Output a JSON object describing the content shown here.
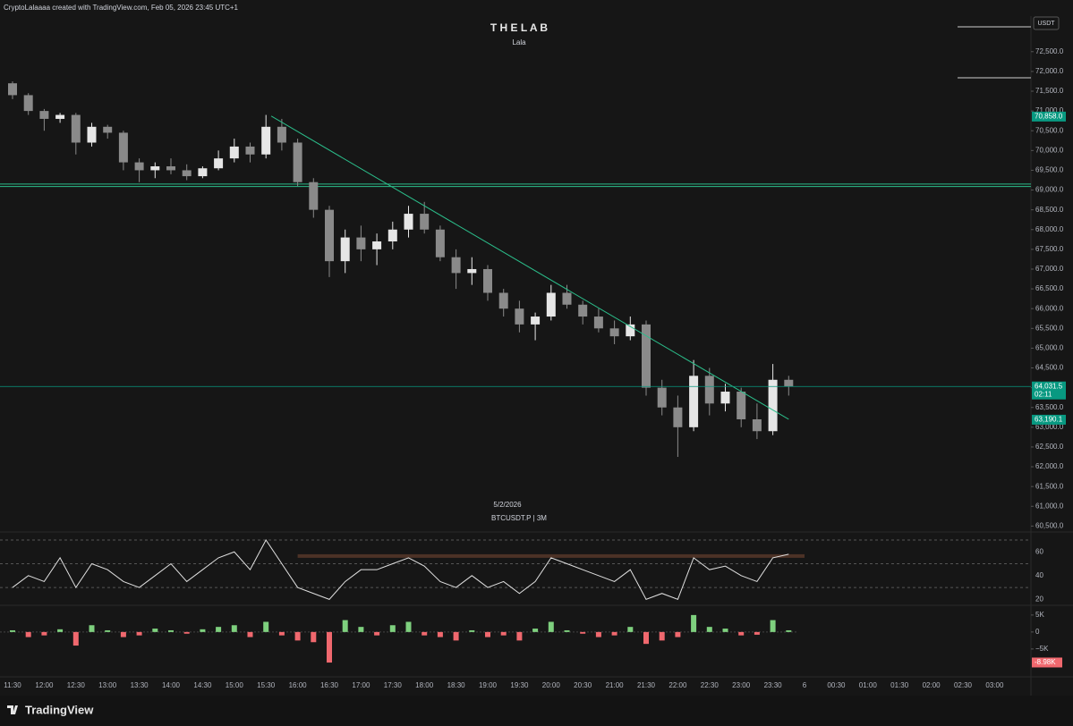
{
  "header": "CryptoLalaaaa created with TradingView.com, Feb 05, 2026 23:45 UTC+1",
  "footer": "TradingView",
  "chart_data": [
    {
      "type": "candlestick",
      "title": "T H E   L A B",
      "subtitle": "Lala",
      "date_label": "5/2/2026",
      "symbol": "BTCUSDT.P | 3M",
      "currency": "USDT",
      "x": [
        "11:30",
        "11:45",
        "12:00",
        "12:15",
        "12:30",
        "12:45",
        "13:00",
        "13:15",
        "13:30",
        "13:45",
        "14:00",
        "14:15",
        "14:30",
        "14:45",
        "15:00",
        "15:15",
        "15:30",
        "15:45",
        "16:00",
        "16:15",
        "16:30",
        "16:45",
        "17:00",
        "17:15",
        "17:30",
        "17:45",
        "18:00",
        "18:15",
        "18:30",
        "18:45",
        "19:00",
        "19:15",
        "19:30",
        "19:45",
        "20:00",
        "20:15",
        "20:30",
        "20:45",
        "21:00",
        "21:15",
        "21:30",
        "21:45",
        "22:00",
        "22:15",
        "22:30",
        "22:45",
        "23:00",
        "23:15",
        "23:30",
        "23:45"
      ],
      "open": [
        71700,
        71400,
        71000,
        70800,
        70900,
        70200,
        70600,
        70450,
        69700,
        69500,
        69600,
        69500,
        69350,
        69550,
        69800,
        70100,
        69900,
        70600,
        70200,
        69200,
        68500,
        67200,
        67800,
        67500,
        67700,
        68000,
        68400,
        68000,
        67300,
        66900,
        67000,
        66400,
        66000,
        65600,
        65800,
        66400,
        66100,
        65800,
        65500,
        65300,
        65600,
        64000,
        63500,
        63000,
        64300,
        63600,
        63900,
        63200,
        62900,
        64200
      ],
      "high": [
        71750,
        71450,
        71050,
        70950,
        70950,
        70700,
        70650,
        70500,
        69800,
        69700,
        69800,
        69650,
        69600,
        70000,
        70300,
        70200,
        70900,
        70800,
        70300,
        69300,
        68600,
        68000,
        68100,
        67900,
        68200,
        68600,
        68700,
        68100,
        67500,
        67300,
        67100,
        66500,
        66200,
        65900,
        66600,
        66600,
        66200,
        66000,
        65700,
        65800,
        65700,
        64200,
        63800,
        64700,
        64500,
        64100,
        64000,
        63600,
        64600,
        64300
      ],
      "low": [
        71300,
        70900,
        70500,
        70700,
        69900,
        70100,
        70300,
        69500,
        69200,
        69300,
        69400,
        69250,
        69300,
        69500,
        69700,
        69700,
        69800,
        70000,
        69100,
        68300,
        66800,
        66900,
        67200,
        67100,
        67500,
        67800,
        67900,
        67200,
        66500,
        66600,
        66200,
        65800,
        65400,
        65200,
        65700,
        66000,
        65600,
        65400,
        65100,
        65200,
        63800,
        63300,
        62250,
        62900,
        63300,
        63400,
        63000,
        62700,
        62800,
        63800
      ],
      "close": [
        71400,
        71000,
        70800,
        70900,
        70200,
        70600,
        70450,
        69700,
        69500,
        69600,
        69500,
        69350,
        69550,
        69800,
        70100,
        69900,
        70600,
        70200,
        69200,
        68500,
        67200,
        67800,
        67500,
        67700,
        68000,
        68400,
        68000,
        67300,
        66900,
        67000,
        66400,
        66000,
        65600,
        65800,
        66400,
        66100,
        65800,
        65500,
        65300,
        65600,
        64000,
        63500,
        63000,
        64300,
        63600,
        63900,
        63200,
        62900,
        64200,
        64031.5
      ],
      "colors": {
        "up": "#e6e6e6",
        "down": "#8a8a8a"
      },
      "ylim": [
        60350,
        73400
      ],
      "yticks": [
        {
          "value": 60500,
          "label": "60,500.0"
        },
        {
          "value": 61000,
          "label": "61,000.0"
        },
        {
          "value": 61500,
          "label": "61,500.0"
        },
        {
          "value": 62000,
          "label": "62,000.0"
        },
        {
          "value": 62500,
          "label": "62,500.0"
        },
        {
          "value": 63000,
          "label": "63,000.0"
        },
        {
          "value": 63500,
          "label": "63,500.0"
        },
        {
          "value": 64000,
          "label": "64,000.0"
        },
        {
          "value": 64500,
          "label": "64,500.0"
        },
        {
          "value": 65000,
          "label": "65,000.0"
        },
        {
          "value": 65500,
          "label": "65,500.0"
        },
        {
          "value": 66000,
          "label": "66,000.0"
        },
        {
          "value": 66500,
          "label": "66,500.0"
        },
        {
          "value": 67000,
          "label": "67,000.0"
        },
        {
          "value": 67500,
          "label": "67,500.0"
        },
        {
          "value": 68000,
          "label": "68,000.0"
        },
        {
          "value": 68500,
          "label": "68,500.0"
        },
        {
          "value": 69000,
          "label": "69,000.0"
        },
        {
          "value": 69500,
          "label": "69,500.0"
        },
        {
          "value": 70000,
          "label": "70,000.0"
        },
        {
          "value": 70500,
          "label": "70,500.0"
        },
        {
          "value": 71000,
          "label": "71,000.0"
        },
        {
          "value": 71500,
          "label": "71,500.0"
        },
        {
          "value": 72000,
          "label": "72,000.0"
        },
        {
          "value": 72500,
          "label": "72,500.0"
        }
      ],
      "xticks": [
        "11:30",
        "12:00",
        "12:30",
        "13:00",
        "13:30",
        "14:00",
        "14:30",
        "15:00",
        "15:30",
        "16:00",
        "16:30",
        "17:00",
        "17:30",
        "18:00",
        "18:30",
        "19:00",
        "19:30",
        "20:00",
        "20:30",
        "21:00",
        "21:30",
        "22:00",
        "22:30",
        "23:00",
        "23:30",
        "6",
        "00:30",
        "01:00",
        "01:30",
        "02:00",
        "02:30",
        "03:00"
      ],
      "price_labels": [
        {
          "value": 70858.0,
          "label": "70,858.0",
          "color": "#089981"
        },
        {
          "value": 64031.5,
          "label": "64,031.5",
          "color": "#089981",
          "countdown": "02:11"
        },
        {
          "value": 63190.1,
          "label": "63,190.1",
          "color": "#089981"
        }
      ],
      "hlines": {
        "values": [
          69150,
          69090
        ],
        "color": "#2bbd8a"
      },
      "trendline": {
        "x": [
          "15:35",
          "23:45"
        ],
        "y": [
          70870,
          63200
        ],
        "color": "#2bbd8a"
      }
    },
    {
      "type": "line",
      "values": [
        30,
        40,
        35,
        55,
        30,
        50,
        45,
        35,
        30,
        40,
        50,
        35,
        45,
        55,
        60,
        45,
        70,
        50,
        30,
        25,
        20,
        35,
        45,
        45,
        50,
        55,
        48,
        35,
        30,
        40,
        30,
        35,
        25,
        35,
        55,
        50,
        45,
        40,
        35,
        45,
        20,
        25,
        20,
        55,
        45,
        48,
        40,
        35,
        55,
        58
      ],
      "color": "#e0e0e0",
      "ylim": [
        15,
        76
      ],
      "yticks": [
        20,
        40,
        60
      ],
      "levels": [
        70,
        50,
        30
      ],
      "band": [
        55,
        58
      ],
      "band_color": "#5a3a2a"
    },
    {
      "type": "bar",
      "values": [
        500,
        -1500,
        -1000,
        800,
        -4000,
        2000,
        500,
        -1500,
        -1000,
        1000,
        500,
        -500,
        800,
        1500,
        2000,
        -1500,
        3000,
        -1000,
        -2500,
        -3000,
        -9000,
        3500,
        1500,
        -1000,
        2000,
        3000,
        -1000,
        -1500,
        -2500,
        500,
        -1500,
        -1000,
        -2500,
        1000,
        3000,
        500,
        -500,
        -1500,
        -1000,
        1500,
        -3500,
        -2500,
        -1500,
        5000,
        1500,
        1000,
        -1000,
        -800,
        3500,
        500
      ],
      "colors": {
        "up": "#7ed07e",
        "down": "#f0686e"
      },
      "ylim": [
        -13200,
        7600
      ],
      "yticks": [
        {
          "value": 5000,
          "label": "5K"
        },
        0,
        {
          "value": -5000,
          "label": "−5K"
        }
      ],
      "last_label": {
        "value": -8980,
        "label": "-8.98K",
        "color": "#f0686e"
      }
    }
  ]
}
